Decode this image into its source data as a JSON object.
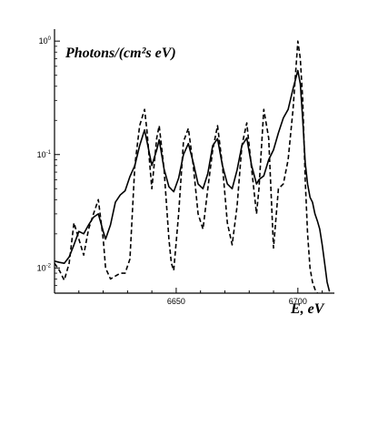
{
  "chart_data": {
    "type": "line",
    "title": "",
    "xlabel": "E, eV",
    "ylabel": "Photons/(cm²s eV)",
    "xlim": [
      6600,
      6715
    ],
    "ylim": [
      0.006,
      1.1
    ],
    "yscale": "log",
    "grid": false,
    "legend": "none",
    "x_ticks": [
      {
        "value": 6650,
        "label": "6650"
      },
      {
        "value": 6700,
        "label": "6700"
      }
    ],
    "y_ticks": [
      {
        "value": 1,
        "label": "10",
        "exp": "0"
      },
      {
        "value": 0.1,
        "label": "10",
        "exp": "-1"
      },
      {
        "value": 0.01,
        "label": "10",
        "exp": "-2"
      }
    ],
    "series": [
      {
        "style": "solid",
        "x": [
          6600,
          6602,
          6604,
          6606,
          6608,
          6610,
          6612,
          6614,
          6616,
          6618,
          6620,
          6621,
          6623,
          6625,
          6627,
          6629,
          6631,
          6633,
          6635,
          6637,
          6638,
          6640,
          6642,
          6643,
          6645,
          6647,
          6649,
          6651,
          6653,
          6655,
          6657,
          6659,
          6661,
          6663,
          6665,
          6667,
          6669,
          6671,
          6673,
          6675,
          6677,
          6679,
          6681,
          6683,
          6684,
          6686,
          6688,
          6690,
          6692,
          6694,
          6696,
          6698,
          6700,
          6701,
          6702,
          6703,
          6704,
          6705,
          6706,
          6707,
          6708,
          6709,
          6710,
          6711,
          6712,
          6713
        ],
        "y": [
          0.0115,
          0.0112,
          0.011,
          0.0125,
          0.016,
          0.021,
          0.02,
          0.024,
          0.028,
          0.03,
          0.021,
          0.018,
          0.024,
          0.038,
          0.044,
          0.048,
          0.064,
          0.08,
          0.12,
          0.165,
          0.13,
          0.08,
          0.11,
          0.135,
          0.075,
          0.052,
          0.047,
          0.062,
          0.1,
          0.125,
          0.085,
          0.055,
          0.05,
          0.068,
          0.12,
          0.138,
          0.08,
          0.055,
          0.05,
          0.073,
          0.12,
          0.14,
          0.08,
          0.055,
          0.06,
          0.065,
          0.09,
          0.11,
          0.155,
          0.21,
          0.25,
          0.38,
          0.55,
          0.42,
          0.2,
          0.085,
          0.055,
          0.042,
          0.038,
          0.03,
          0.026,
          0.022,
          0.016,
          0.011,
          0.0075,
          0.0062
        ]
      },
      {
        "style": "dashed",
        "x": [
          6600,
          6602,
          6604,
          6606,
          6608,
          6610,
          6612,
          6614,
          6616,
          6618,
          6620,
          6621,
          6623,
          6625,
          6627,
          6629,
          6631,
          6633,
          6635,
          6637,
          6638,
          6640,
          6642,
          6643,
          6645,
          6647,
          6648,
          6649,
          6651,
          6653,
          6655,
          6657,
          6659,
          6661,
          6663,
          6665,
          6667,
          6669,
          6671,
          6673,
          6675,
          6677,
          6679,
          6681,
          6683,
          6684,
          6686,
          6688,
          6690,
          6692,
          6694,
          6696,
          6698,
          6700,
          6701,
          6702,
          6703,
          6704,
          6705,
          6706,
          6707,
          6708
        ],
        "y": [
          0.011,
          0.0095,
          0.0078,
          0.011,
          0.025,
          0.018,
          0.013,
          0.022,
          0.03,
          0.04,
          0.018,
          0.01,
          0.008,
          0.0085,
          0.009,
          0.009,
          0.012,
          0.08,
          0.18,
          0.25,
          0.16,
          0.05,
          0.14,
          0.18,
          0.075,
          0.018,
          0.011,
          0.0095,
          0.03,
          0.13,
          0.17,
          0.08,
          0.03,
          0.022,
          0.05,
          0.11,
          0.18,
          0.08,
          0.025,
          0.016,
          0.035,
          0.12,
          0.19,
          0.075,
          0.03,
          0.05,
          0.25,
          0.14,
          0.015,
          0.05,
          0.055,
          0.09,
          0.25,
          1.0,
          0.7,
          0.3,
          0.06,
          0.02,
          0.01,
          0.0075,
          0.0065,
          0.006
        ]
      }
    ]
  }
}
